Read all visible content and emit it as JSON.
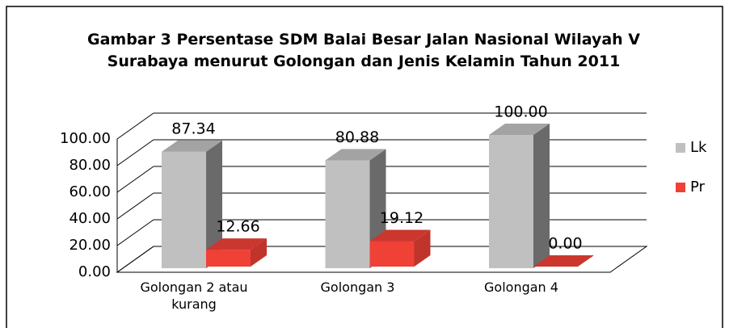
{
  "chart_data": {
    "type": "bar3d",
    "title": "Gambar 3 Persentase SDM Balai Besar Jalan Nasional Wilayah V Surabaya menurut Golongan dan Jenis Kelamin Tahun 2011",
    "categories": [
      "Golongan 2 atau kurang",
      "Golongan 3",
      "Golongan 4"
    ],
    "series": [
      {
        "name": "Lk",
        "color": "#c0c0c0",
        "values": [
          87.34,
          80.88,
          100
        ],
        "value_labels": [
          "87.34",
          "80.88",
          "100.00"
        ]
      },
      {
        "name": "Pr",
        "color": "#ef4136",
        "values": [
          12.66,
          19.12,
          0
        ],
        "value_labels": [
          "12.66",
          "19.12",
          "0.00"
        ]
      }
    ],
    "ylim": [
      0,
      100
    ],
    "yticks": [
      {
        "value": 0,
        "label": "0.00"
      },
      {
        "value": 20,
        "label": "20.00"
      },
      {
        "value": 40,
        "label": "40.00"
      },
      {
        "value": 60,
        "label": "60.00"
      },
      {
        "value": 80,
        "label": "80.00"
      },
      {
        "value": 100,
        "label": "100.00"
      }
    ],
    "grid": true,
    "legend": "right"
  }
}
